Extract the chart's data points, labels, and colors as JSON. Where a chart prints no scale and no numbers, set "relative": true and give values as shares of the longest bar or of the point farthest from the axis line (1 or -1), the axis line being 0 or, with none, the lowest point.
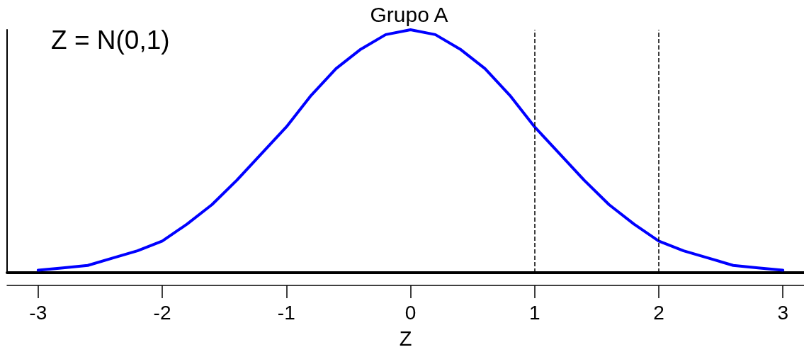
{
  "chart_data": {
    "type": "line",
    "title": "Grupo A",
    "xlabel": "Z",
    "annotations": [
      "Z = N(0,1)"
    ],
    "x": [
      -3.0,
      -2.8,
      -2.6,
      -2.4,
      -2.2,
      -2.0,
      -1.8,
      -1.6,
      -1.4,
      -1.2,
      -1.0,
      -0.8,
      -0.6,
      -0.4,
      -0.2,
      0,
      0.2,
      0.4,
      0.6,
      0.8,
      1.0,
      1.2,
      1.4,
      1.6,
      1.8,
      2.0,
      2.2,
      2.4,
      2.6,
      2.8,
      3.0
    ],
    "series": [
      {
        "color": "#0000ff",
        "values": [
          0.01,
          0.02,
          0.03,
          0.06,
          0.09,
          0.13,
          0.2,
          0.28,
          0.38,
          0.49,
          0.6,
          0.73,
          0.84,
          0.92,
          0.98,
          1.0,
          0.98,
          0.92,
          0.84,
          0.73,
          0.6,
          0.49,
          0.38,
          0.28,
          0.2,
          0.13,
          0.09,
          0.06,
          0.03,
          0.02,
          0.01
        ]
      }
    ],
    "relative": true,
    "xlim": [
      -3.25,
      3.17
    ],
    "xticks": [
      -3,
      -2,
      -1,
      0,
      1,
      2,
      3
    ],
    "ref_lines": [
      {
        "axis": "x",
        "value": 1,
        "color": "#000000",
        "line_style": "dashed"
      },
      {
        "axis": "x",
        "value": 2,
        "color": "#000000",
        "line_style": "dashed"
      }
    ],
    "grid": false,
    "marker": "none",
    "line_style": "solid"
  }
}
